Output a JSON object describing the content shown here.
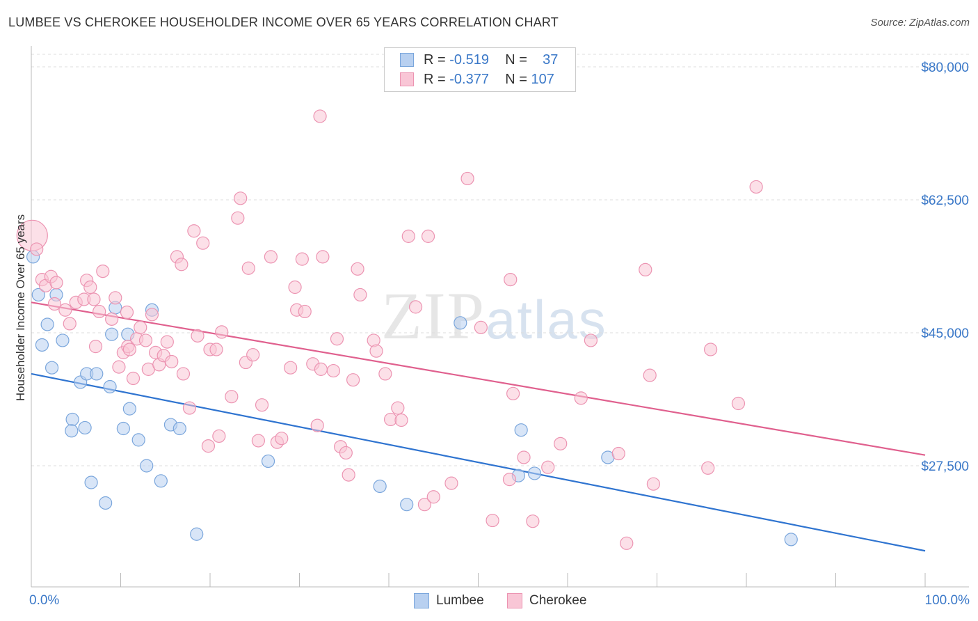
{
  "title": "LUMBEE VS CHEROKEE HOUSEHOLDER INCOME OVER 65 YEARS CORRELATION CHART",
  "source": "Source: ZipAtlas.com",
  "watermark": {
    "zip": "ZIP",
    "atlas": "atlas"
  },
  "legend": {
    "r_label": "R =",
    "n_label": "N =",
    "rows": [
      {
        "name": "Lumbee",
        "r": "-0.519",
        "n": "37"
      },
      {
        "name": "Cherokee",
        "r": "-0.377",
        "n": "107"
      }
    ]
  },
  "colors": {
    "lumbee_fill": "#b8d0f0",
    "lumbee_stroke": "#7aa6dc",
    "lumbee_line": "#2f74d0",
    "cherokee_fill": "#f9c6d6",
    "cherokee_stroke": "#ec94b2",
    "cherokee_line": "#e0608e",
    "axis_text": "#3a78c8"
  },
  "chart_data": {
    "type": "scatter",
    "title": "LUMBEE VS CHEROKEE HOUSEHOLDER INCOME OVER 65 YEARS CORRELATION CHART",
    "xlabel": "",
    "ylabel": "Householder Income Over 65 years",
    "x_tick_labels": [
      "0.0%",
      "100.0%"
    ],
    "y_tick_labels": [
      "$80,000",
      "$62,500",
      "$45,000",
      "$27,500"
    ],
    "y_ticks": [
      80000,
      62500,
      45000,
      27500
    ],
    "xlim": [
      0,
      100
    ],
    "ylim": [
      10000,
      82500
    ],
    "grid": true,
    "legend_position": "top-center",
    "series": [
      {
        "name": "Lumbee",
        "r": -0.519,
        "n": 37,
        "trend": {
          "x": [
            0,
            100
          ],
          "y": [
            39600,
            16300
          ]
        },
        "points": [
          [
            0.2,
            55000
          ],
          [
            0.8,
            50000
          ],
          [
            1.2,
            43400
          ],
          [
            1.8,
            46100
          ],
          [
            2.3,
            40400
          ],
          [
            3.5,
            44000
          ],
          [
            2.8,
            50000
          ],
          [
            4.6,
            33600
          ],
          [
            4.5,
            32100
          ],
          [
            5.5,
            38500
          ],
          [
            6.0,
            32500
          ],
          [
            6.2,
            39600
          ],
          [
            7.3,
            39600
          ],
          [
            6.7,
            25300
          ],
          [
            8.3,
            22600
          ],
          [
            8.8,
            37900
          ],
          [
            9.0,
            44800
          ],
          [
            9.4,
            48300
          ],
          [
            10.3,
            32400
          ],
          [
            10.8,
            44800
          ],
          [
            11.0,
            35000
          ],
          [
            12.0,
            30900
          ],
          [
            12.9,
            27500
          ],
          [
            13.5,
            48000
          ],
          [
            14.5,
            25500
          ],
          [
            15.6,
            32900
          ],
          [
            16.6,
            32400
          ],
          [
            18.5,
            18500
          ],
          [
            26.5,
            28100
          ],
          [
            39.0,
            24800
          ],
          [
            42.0,
            22400
          ],
          [
            48.0,
            46300
          ],
          [
            54.5,
            26200
          ],
          [
            54.8,
            32200
          ],
          [
            56.3,
            26500
          ],
          [
            64.5,
            28600
          ],
          [
            85.0,
            17800
          ]
        ]
      },
      {
        "name": "Cherokee",
        "r": -0.377,
        "n": 107,
        "trend": {
          "x": [
            0,
            100
          ],
          "y": [
            49000,
            28900
          ]
        },
        "points": [
          [
            0.1,
            57800
          ],
          [
            0.6,
            56000
          ],
          [
            1.2,
            52000
          ],
          [
            1.6,
            51200
          ],
          [
            2.2,
            52400
          ],
          [
            2.6,
            48800
          ],
          [
            2.8,
            51600
          ],
          [
            3.8,
            48000
          ],
          [
            4.3,
            46200
          ],
          [
            5.0,
            49000
          ],
          [
            5.9,
            49400
          ],
          [
            6.2,
            51900
          ],
          [
            6.6,
            51000
          ],
          [
            7.0,
            49400
          ],
          [
            7.2,
            43200
          ],
          [
            7.6,
            47800
          ],
          [
            8.0,
            53100
          ],
          [
            9.0,
            46800
          ],
          [
            9.4,
            49600
          ],
          [
            9.8,
            40500
          ],
          [
            10.3,
            42400
          ],
          [
            10.7,
            47700
          ],
          [
            10.8,
            43200
          ],
          [
            11.0,
            42800
          ],
          [
            11.4,
            39000
          ],
          [
            11.8,
            44200
          ],
          [
            12.2,
            45700
          ],
          [
            12.8,
            44000
          ],
          [
            13.1,
            40200
          ],
          [
            13.5,
            47400
          ],
          [
            13.9,
            42400
          ],
          [
            14.3,
            40800
          ],
          [
            14.8,
            42000
          ],
          [
            15.2,
            43800
          ],
          [
            15.7,
            41200
          ],
          [
            16.3,
            55000
          ],
          [
            16.8,
            54000
          ],
          [
            17.0,
            39600
          ],
          [
            17.7,
            35100
          ],
          [
            18.2,
            58400
          ],
          [
            18.6,
            44600
          ],
          [
            19.2,
            56800
          ],
          [
            19.8,
            30100
          ],
          [
            20.0,
            42800
          ],
          [
            20.7,
            42800
          ],
          [
            21.0,
            31400
          ],
          [
            21.3,
            45100
          ],
          [
            22.4,
            36600
          ],
          [
            23.4,
            62700
          ],
          [
            23.1,
            60100
          ],
          [
            24.0,
            41100
          ],
          [
            24.3,
            53500
          ],
          [
            24.8,
            42100
          ],
          [
            25.4,
            30800
          ],
          [
            25.8,
            35500
          ],
          [
            26.8,
            55000
          ],
          [
            27.5,
            30600
          ],
          [
            28.0,
            31100
          ],
          [
            29.0,
            40400
          ],
          [
            29.5,
            51000
          ],
          [
            29.7,
            48000
          ],
          [
            30.3,
            54700
          ],
          [
            30.6,
            47800
          ],
          [
            31.5,
            40900
          ],
          [
            32.0,
            32800
          ],
          [
            32.4,
            40200
          ],
          [
            32.3,
            73500
          ],
          [
            32.6,
            55000
          ],
          [
            33.8,
            40000
          ],
          [
            34.2,
            44200
          ],
          [
            34.6,
            30000
          ],
          [
            35.2,
            29200
          ],
          [
            35.5,
            26300
          ],
          [
            36.0,
            38800
          ],
          [
            36.5,
            53400
          ],
          [
            36.8,
            50000
          ],
          [
            38.3,
            44000
          ],
          [
            38.6,
            42600
          ],
          [
            39.6,
            39600
          ],
          [
            40.2,
            33600
          ],
          [
            41.0,
            35100
          ],
          [
            41.4,
            33500
          ],
          [
            42.2,
            57700
          ],
          [
            43.0,
            48400
          ],
          [
            44.0,
            22400
          ],
          [
            44.4,
            57700
          ],
          [
            45.0,
            23400
          ],
          [
            47.0,
            25200
          ],
          [
            48.8,
            65300
          ],
          [
            50.3,
            45700
          ],
          [
            51.6,
            20300
          ],
          [
            53.5,
            25700
          ],
          [
            53.6,
            52000
          ],
          [
            53.9,
            37000
          ],
          [
            55.1,
            28600
          ],
          [
            56.1,
            20200
          ],
          [
            57.8,
            27300
          ],
          [
            59.2,
            30400
          ],
          [
            61.5,
            36400
          ],
          [
            62.6,
            44000
          ],
          [
            65.7,
            29100
          ],
          [
            66.6,
            17300
          ],
          [
            68.7,
            53300
          ],
          [
            69.2,
            39400
          ],
          [
            69.6,
            25100
          ],
          [
            75.7,
            27200
          ],
          [
            76.0,
            42800
          ],
          [
            79.1,
            35700
          ],
          [
            81.1,
            64200
          ]
        ]
      }
    ]
  }
}
